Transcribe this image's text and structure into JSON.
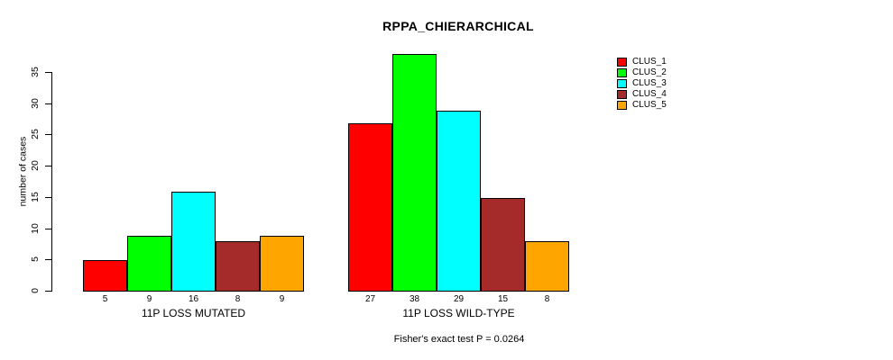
{
  "chart_data": {
    "type": "bar",
    "title": "RPPA_CHIERARCHICAL",
    "ylabel": "number of cases",
    "xlabel": "",
    "annotation": "Fisher's exact test P = 0.0264",
    "ylim": [
      0,
      38
    ],
    "yticks": [
      0,
      5,
      10,
      15,
      20,
      25,
      30,
      35
    ],
    "grid": false,
    "legend_position": "right",
    "bar_border_color": "#000000",
    "categories": [
      "11P LOSS MUTATED",
      "11P LOSS WILD-TYPE"
    ],
    "series": [
      {
        "name": "CLUS_1",
        "color": "#ff0000",
        "values": [
          5,
          27
        ]
      },
      {
        "name": "CLUS_2",
        "color": "#00ff00",
        "values": [
          9,
          38
        ]
      },
      {
        "name": "CLUS_3",
        "color": "#00ffff",
        "values": [
          16,
          29
        ]
      },
      {
        "name": "CLUS_4",
        "color": "#a52a2a",
        "values": [
          8,
          15
        ]
      },
      {
        "name": "CLUS_5",
        "color": "#ffa500",
        "values": [
          9,
          8
        ]
      }
    ]
  }
}
